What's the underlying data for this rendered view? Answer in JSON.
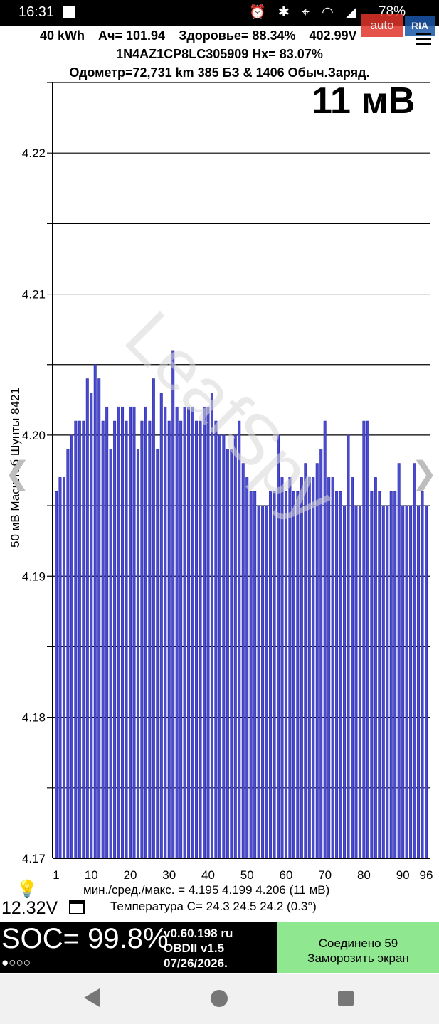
{
  "status_bar": {
    "time": "16:31",
    "battery": "78%"
  },
  "badge": {
    "auto": "auto",
    "ria": "RIA"
  },
  "header": {
    "kwh": "40 kWh",
    "ah": "Ач= 101.94",
    "health": "Здоровье= 88.34%",
    "voltage": "402.99V",
    "vin_hx": "1N4AZ1CP8LC305909   Hx= 83.07%",
    "odometer": "Одометр=72,731 km 385 БЗ & 1406 Обыч.Заряд."
  },
  "big_value": "11 мВ",
  "y_axis_label": "50 мВ Масштаб  Шунты 8421",
  "watermark": "LeafSpy",
  "chart_data": {
    "type": "bar",
    "ylim": [
      4.17,
      4.225
    ],
    "y_ticks": [
      4.17,
      4.18,
      4.19,
      4.2,
      4.21,
      4.22
    ],
    "y_tick_labels": [
      "4.17",
      "4.18",
      "4.19",
      "4.20",
      "4.21",
      "4.22"
    ],
    "x_ticks": [
      "1",
      "10",
      "20",
      "30",
      "40",
      "50",
      "60",
      "70",
      "80",
      "90",
      "96"
    ],
    "x_range": [
      1,
      96
    ],
    "grid": true,
    "values": [
      4.196,
      4.197,
      4.197,
      4.199,
      4.2,
      4.201,
      4.201,
      4.201,
      4.204,
      4.203,
      4.205,
      4.204,
      4.201,
      4.202,
      4.199,
      4.201,
      4.202,
      4.202,
      4.201,
      4.202,
      4.202,
      4.199,
      4.201,
      4.202,
      4.201,
      4.204,
      4.199,
      4.203,
      4.202,
      4.201,
      4.206,
      4.202,
      4.201,
      4.202,
      4.202,
      4.202,
      4.201,
      4.201,
      4.202,
      4.202,
      4.203,
      4.201,
      4.2,
      4.2,
      4.199,
      4.199,
      4.2,
      4.201,
      4.198,
      4.197,
      4.196,
      4.196,
      4.195,
      4.195,
      4.195,
      4.196,
      4.196,
      4.2,
      4.197,
      4.196,
      4.197,
      4.196,
      4.196,
      4.197,
      4.198,
      4.197,
      4.197,
      4.198,
      4.199,
      4.201,
      4.197,
      4.197,
      4.196,
      4.196,
      4.195,
      4.2,
      4.197,
      4.195,
      4.195,
      4.201,
      4.201,
      4.196,
      4.197,
      4.196,
      4.195,
      4.195,
      4.196,
      4.196,
      4.198,
      4.195,
      4.195,
      4.195,
      4.198,
      4.195,
      4.196,
      4.195
    ]
  },
  "stats": {
    "minmax": "мин./сред./макс. = 4.195 4.199 4.206  (11 мВ)",
    "temperature": "Температура C= 24.3  24.5  24.2  (0.3°)"
  },
  "aux_voltage": "12.32V",
  "bottom": {
    "soc": "SOC= 99.8%",
    "dots": "●○○○",
    "version": "v0.60.198 ru",
    "obd": "OBDII  v1.5",
    "date": "07/26/2026.",
    "connected": "Соединено 59",
    "freeze": "Заморозить экран"
  }
}
